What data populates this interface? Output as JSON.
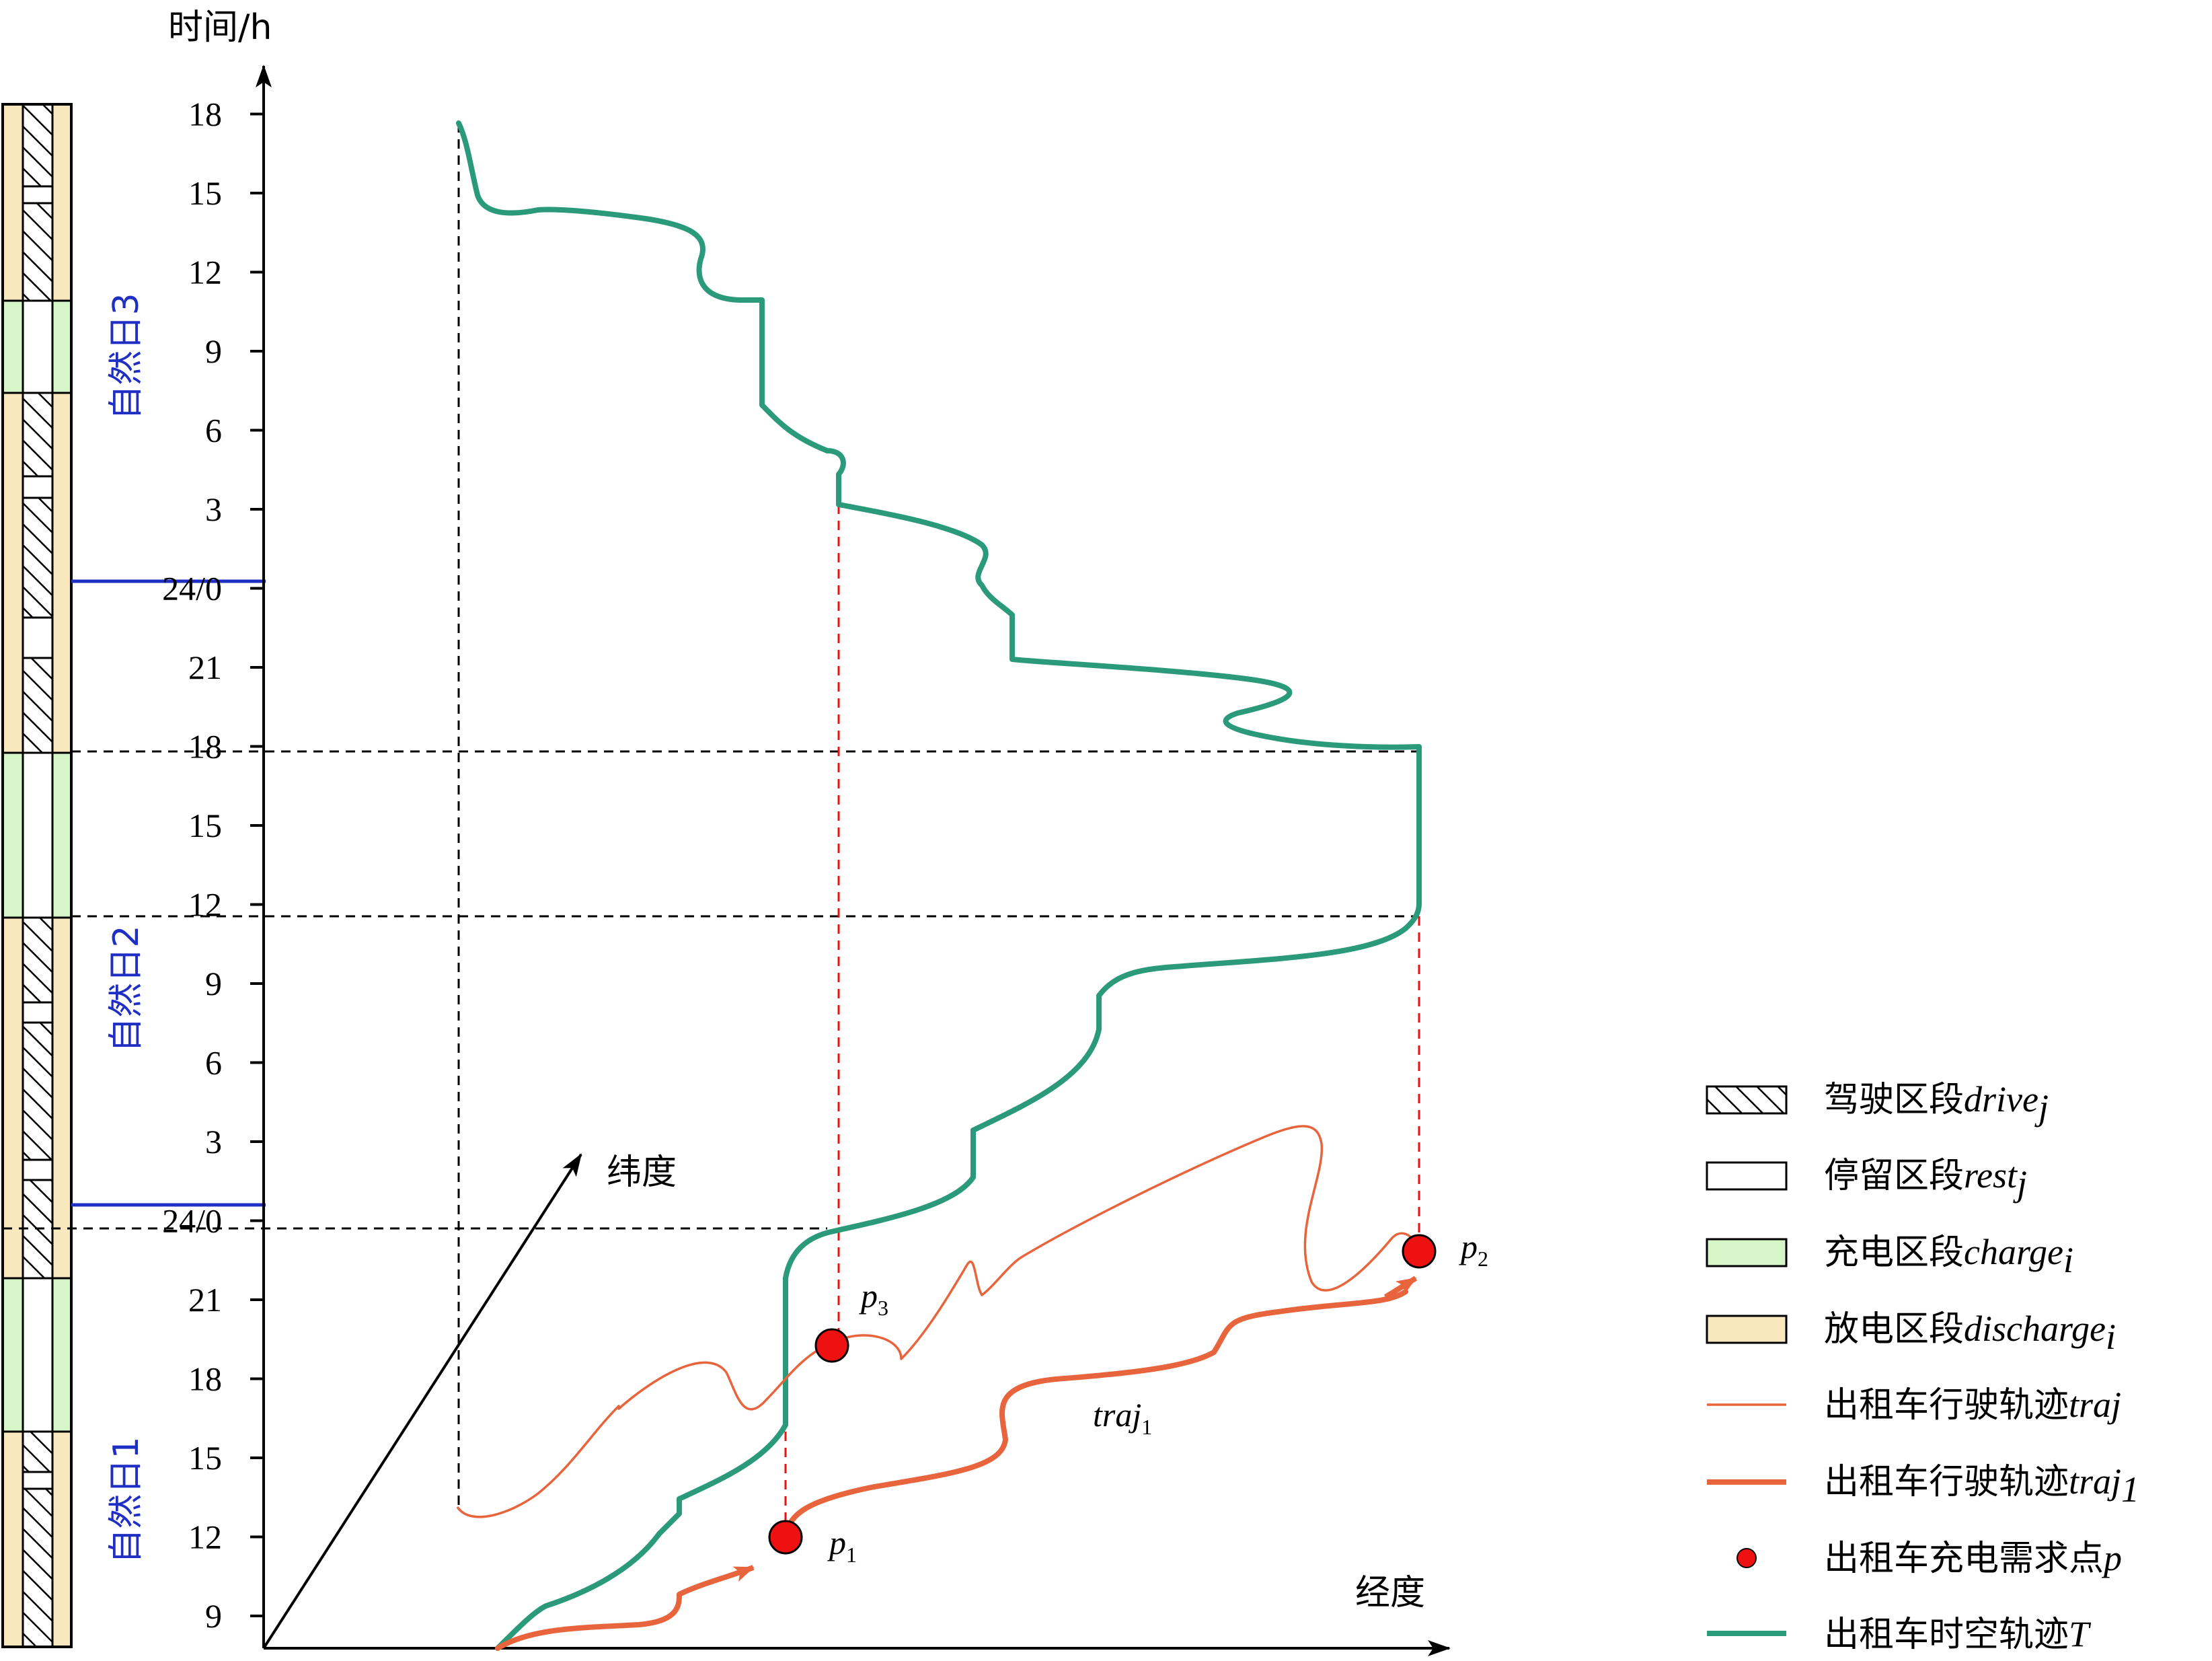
{
  "chart": {
    "y_axis_title": "时间/h",
    "x_axis_title": "经度",
    "z_axis_title": "纬度",
    "tick_labels": [
      "9",
      "12",
      "15",
      "18",
      "21",
      "24/0",
      "3",
      "6",
      "9",
      "12",
      "15",
      "18",
      "21",
      "24/0",
      "3",
      "6",
      "9",
      "12",
      "15",
      "18"
    ],
    "day_labels": [
      "自然日1",
      "自然日2",
      "自然日3"
    ],
    "points": [
      {
        "name": "p",
        "sub": "1"
      },
      {
        "name": "p",
        "sub": "2"
      },
      {
        "name": "p",
        "sub": "3"
      }
    ],
    "traj1_label": {
      "text": "traj",
      "sub": "1"
    }
  },
  "legend": [
    {
      "type": "drive",
      "text": "驾驶区段",
      "italic": "drive",
      "sub": "j"
    },
    {
      "type": "rest",
      "text": "停留区段",
      "italic": "rest",
      "sub": "j"
    },
    {
      "type": "charge",
      "text": "充电区段",
      "italic": "charge",
      "sub": "i"
    },
    {
      "type": "discharge",
      "text": "放电区段",
      "italic": "discharge",
      "sub": "i"
    },
    {
      "type": "traj",
      "text": "出租车行驶轨迹",
      "italic": "traj",
      "sub": ""
    },
    {
      "type": "traj1",
      "text": "出租车行驶轨迹",
      "italic": "traj",
      "sub": "1"
    },
    {
      "type": "point",
      "text": "出租车充电需求点",
      "italic": "p",
      "sub": ""
    },
    {
      "type": "T",
      "text": "出租车时空轨迹",
      "italic": "T",
      "sub": ""
    }
  ],
  "timeline_segments": [
    {
      "type": "discharge",
      "from": 0,
      "to": 1
    },
    {
      "type": "charge",
      "from": 1,
      "to": 2
    },
    {
      "type": "discharge",
      "from": 2,
      "to": 3
    },
    {
      "type": "charge",
      "from": 3,
      "to": 4
    },
    {
      "type": "discharge",
      "from": 4,
      "to": 5
    },
    {
      "type": "charge",
      "from": 5,
      "to": 6
    },
    {
      "type": "discharge",
      "from": 6,
      "to": 7
    }
  ],
  "colors": {
    "trajectory_T": "#2a9a7a",
    "trajectory": "#e8643c",
    "point": "#ee1111",
    "day_line": "#1f2fc4",
    "charge": "#d6f5c8",
    "discharge": "#f9e8bd"
  }
}
